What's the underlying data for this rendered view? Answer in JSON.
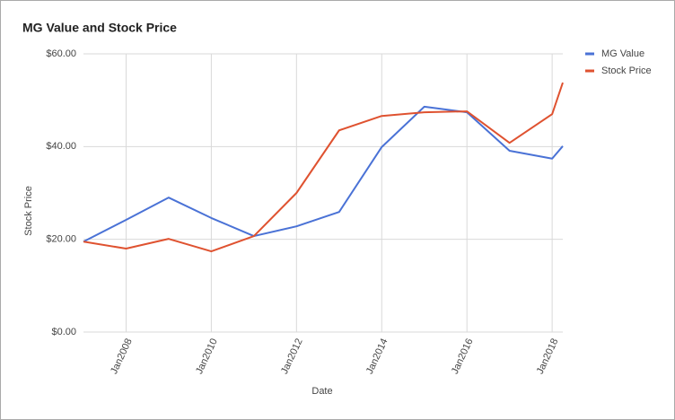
{
  "chart_data": {
    "type": "line",
    "title": "MG Value and Stock Price",
    "x_label": "Date",
    "y_label": "Stock Price",
    "x": [
      2007,
      2008,
      2009,
      2010,
      2011,
      2012,
      2013,
      2014,
      2015,
      2016,
      2017,
      2018,
      2018.25
    ],
    "series": [
      {
        "name": "MG Value",
        "color": "#4a72d6",
        "values": [
          19.5,
          24.2,
          29.0,
          24.6,
          20.7,
          22.8,
          25.9,
          39.9,
          48.6,
          47.4,
          39.1,
          37.4,
          40.1
        ]
      },
      {
        "name": "Stock Price",
        "color": "#df5230",
        "values": [
          19.5,
          18.0,
          20.1,
          17.4,
          20.7,
          30.0,
          43.5,
          46.6,
          47.4,
          47.6,
          40.8,
          47.0,
          53.8
        ]
      }
    ],
    "xlim": [
      2007,
      2018.25
    ],
    "xticks": [
      {
        "value": 2008,
        "label": "Jan2008"
      },
      {
        "value": 2010,
        "label": "Jan2010"
      },
      {
        "value": 2012,
        "label": "Jan2012"
      },
      {
        "value": 2014,
        "label": "Jan2014"
      },
      {
        "value": 2016,
        "label": "Jan2016"
      },
      {
        "value": 2018,
        "label": "Jan2018"
      }
    ],
    "ylim": [
      0,
      60
    ],
    "yticks": [
      {
        "value": 0,
        "label": "$0.00"
      },
      {
        "value": 20,
        "label": "$20.00"
      },
      {
        "value": 40,
        "label": "$40.00"
      },
      {
        "value": 60,
        "label": "$60.00"
      }
    ],
    "grid": true,
    "legend": "right"
  }
}
